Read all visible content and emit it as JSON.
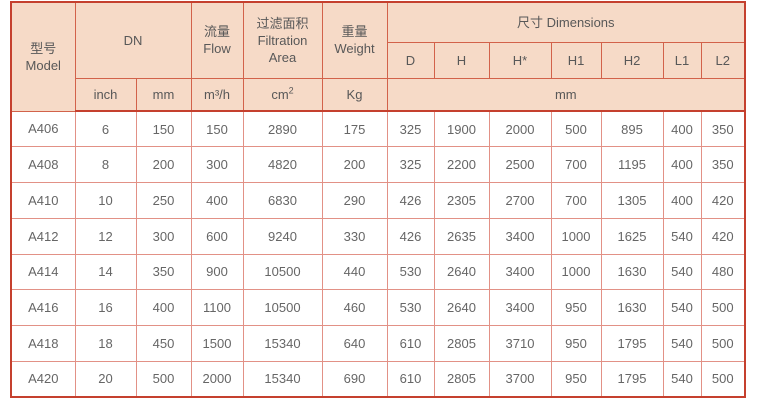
{
  "table": {
    "header": {
      "model": {
        "zh": "型号",
        "en": "Model"
      },
      "dn": "DN",
      "flow": {
        "zh": "流量",
        "en": "Flow"
      },
      "filtration": {
        "zh": "过滤面积",
        "en1": "Filtration",
        "en2": "Area"
      },
      "weight": {
        "zh": "重量",
        "en": "Weight"
      },
      "dimensions": "尺寸 Dimensions",
      "dim_columns": [
        "D",
        "H",
        "H*",
        "H1",
        "H2",
        "L1",
        "L2"
      ],
      "units": {
        "inch": "inch",
        "mm": "mm",
        "flow": "m³/h",
        "area_base": "cm",
        "area_sup": "2",
        "weight": "Kg",
        "dims_mm": "mm"
      }
    },
    "rows": [
      [
        "A406",
        "6",
        "150",
        "150",
        "2890",
        "175",
        "325",
        "1900",
        "2000",
        "500",
        "895",
        "400",
        "350"
      ],
      [
        "A408",
        "8",
        "200",
        "300",
        "4820",
        "200",
        "325",
        "2200",
        "2500",
        "700",
        "1195",
        "400",
        "350"
      ],
      [
        "A410",
        "10",
        "250",
        "400",
        "6830",
        "290",
        "426",
        "2305",
        "2700",
        "700",
        "1305",
        "400",
        "420"
      ],
      [
        "A412",
        "12",
        "300",
        "600",
        "9240",
        "330",
        "426",
        "2635",
        "3400",
        "1000",
        "1625",
        "540",
        "420"
      ],
      [
        "A414",
        "14",
        "350",
        "900",
        "10500",
        "440",
        "530",
        "2640",
        "3400",
        "1000",
        "1630",
        "540",
        "480"
      ],
      [
        "A416",
        "16",
        "400",
        "1100",
        "10500",
        "460",
        "530",
        "2640",
        "3400",
        "950",
        "1630",
        "540",
        "500"
      ],
      [
        "A418",
        "18",
        "450",
        "1500",
        "15340",
        "640",
        "610",
        "2805",
        "3710",
        "950",
        "1795",
        "540",
        "500"
      ],
      [
        "A420",
        "20",
        "500",
        "2000",
        "15340",
        "690",
        "610",
        "2805",
        "3700",
        "950",
        "1795",
        "540",
        "500"
      ]
    ]
  },
  "colors": {
    "header_bg": "#f6dac7",
    "border_outer": "#c5402e",
    "border_header": "#d2624a",
    "border_body": "#e29186",
    "text": "#595959"
  }
}
